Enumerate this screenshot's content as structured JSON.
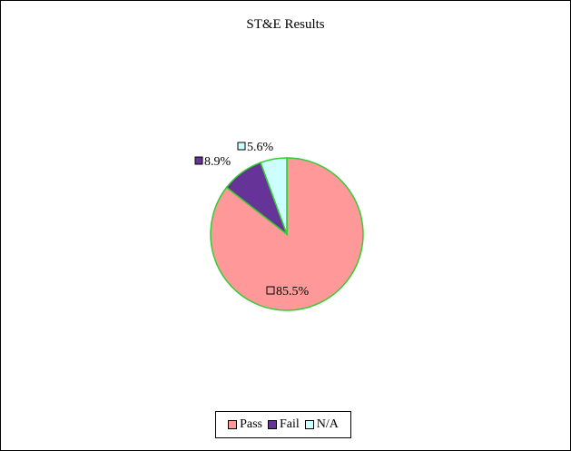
{
  "chart_data": {
    "type": "pie",
    "title": "ST&E Results",
    "categories": [
      "Pass",
      "Fail",
      "N/A"
    ],
    "values": [
      85.5,
      8.9,
      5.6
    ],
    "data_labels": [
      "85.5%",
      "8.9%",
      "5.6%"
    ],
    "colors": [
      "#FF9999",
      "#663399",
      "#CCFFFF"
    ],
    "slice_border_color": "#33CC33",
    "start": "12 o'clock",
    "direction": "clockwise",
    "legend_position": "bottom"
  }
}
